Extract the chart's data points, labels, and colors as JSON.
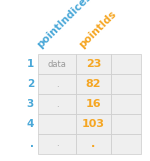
{
  "col_headers": [
    "pointIndices",
    "pointIds"
  ],
  "col_header_colors": [
    "#4aa8d8",
    "#f5a623"
  ],
  "row_indices": [
    "1",
    "2",
    "3",
    "4",
    "."
  ],
  "row_index_color": "#4aa8d8",
  "col1_values": [
    "data",
    ".",
    ".",
    "",
    "."
  ],
  "col1_color": "#999999",
  "col2_values": [
    "23",
    "82",
    "16",
    "103",
    "."
  ],
  "col2_color": "#f5a623",
  "col3_values": [
    "",
    "",
    "",
    "",
    ""
  ],
  "cell_bg": "#efefef",
  "grid_color": "#cccccc",
  "bg_color": "#ffffff",
  "n_rows": 5,
  "n_cols": 3,
  "figw": 1.5,
  "figh": 1.61
}
